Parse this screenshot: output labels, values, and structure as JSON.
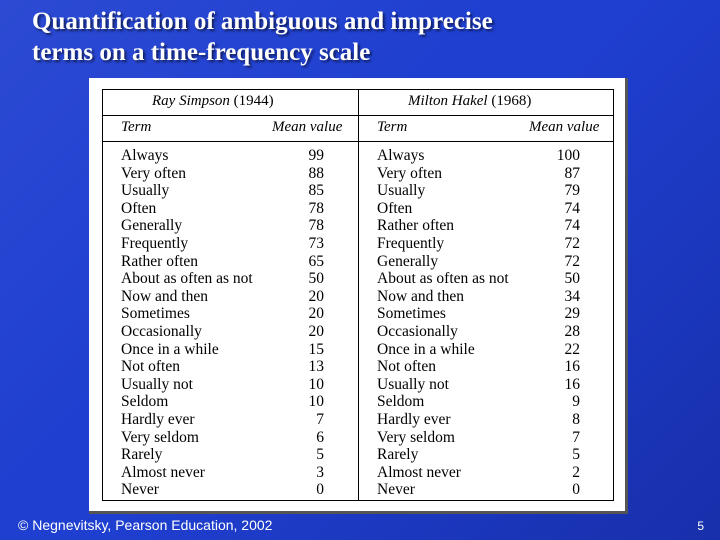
{
  "slide": {
    "title_line1": "Quantification of ambiguous and imprecise",
    "title_line2": "terms on a time-frequency scale",
    "footer": "Negnevitsky, Pearson Education, 2002",
    "copyright_symbol": "©",
    "page_number": "5"
  },
  "table": {
    "simpson": {
      "author": "Ray Simpson",
      "year": "(1944)"
    },
    "hakel": {
      "author": "Milton Hakel",
      "year": "(1968)"
    },
    "col_term": "Term",
    "col_mean": "Mean value",
    "simpson_rows": [
      {
        "term": "Always",
        "value": "99"
      },
      {
        "term": "Very often",
        "value": "88"
      },
      {
        "term": "Usually",
        "value": "85"
      },
      {
        "term": "Often",
        "value": "78"
      },
      {
        "term": "Generally",
        "value": "78"
      },
      {
        "term": "Frequently",
        "value": "73"
      },
      {
        "term": "Rather often",
        "value": "65"
      },
      {
        "term": "About as often as not",
        "value": "50"
      },
      {
        "term": "Now and then",
        "value": "20"
      },
      {
        "term": "Sometimes",
        "value": "20"
      },
      {
        "term": "Occasionally",
        "value": "20"
      },
      {
        "term": "Once in a while",
        "value": "15"
      },
      {
        "term": "Not often",
        "value": "13"
      },
      {
        "term": "Usually not",
        "value": "10"
      },
      {
        "term": "Seldom",
        "value": "10"
      },
      {
        "term": "Hardly ever",
        "value": "7"
      },
      {
        "term": "Very seldom",
        "value": "6"
      },
      {
        "term": "Rarely",
        "value": "5"
      },
      {
        "term": "Almost never",
        "value": "3"
      },
      {
        "term": "Never",
        "value": "0"
      }
    ],
    "hakel_rows": [
      {
        "term": "Always",
        "value": "100"
      },
      {
        "term": "Very often",
        "value": "87"
      },
      {
        "term": "Usually",
        "value": "79"
      },
      {
        "term": "Often",
        "value": "74"
      },
      {
        "term": "Rather often",
        "value": "74"
      },
      {
        "term": "Frequently",
        "value": "72"
      },
      {
        "term": "Generally",
        "value": "72"
      },
      {
        "term": "About as often as not",
        "value": "50"
      },
      {
        "term": "Now and then",
        "value": "34"
      },
      {
        "term": "Sometimes",
        "value": "29"
      },
      {
        "term": "Occasionally",
        "value": "28"
      },
      {
        "term": "Once in a while",
        "value": "22"
      },
      {
        "term": "Not often",
        "value": "16"
      },
      {
        "term": "Usually not",
        "value": "16"
      },
      {
        "term": "Seldom",
        "value": "9"
      },
      {
        "term": "Hardly ever",
        "value": "8"
      },
      {
        "term": "Very seldom",
        "value": "7"
      },
      {
        "term": "Rarely",
        "value": "5"
      },
      {
        "term": "Almost never",
        "value": "2"
      },
      {
        "term": "Never",
        "value": "0"
      }
    ]
  }
}
